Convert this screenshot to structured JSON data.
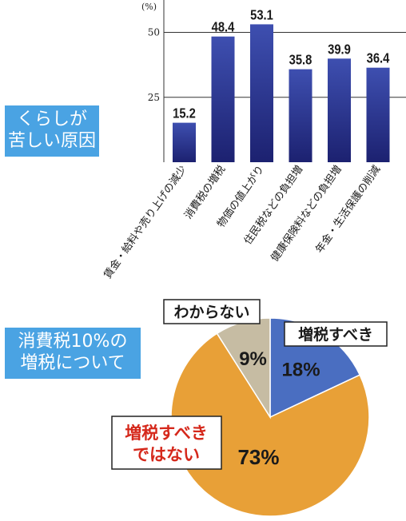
{
  "colors": {
    "bar_top": "#3e4fb0",
    "bar_bottom": "#1c2170",
    "panel_blue": "#4aa3e3",
    "pie_blue": "#4a6ec1",
    "pie_orange": "#e8a037",
    "pie_grey": "#c6bca3",
    "label_red": "#d5281b"
  },
  "top_section": {
    "label_line1": "くらしが",
    "label_line2": "苦しい原因"
  },
  "bottom_section": {
    "label_line1": "消費税10%の",
    "label_line2": "増税について"
  },
  "chart_data": [
    {
      "type": "bar",
      "ylabel_unit": "(%)",
      "yticks": [
        25,
        50
      ],
      "ylim": [
        0,
        60
      ],
      "categories": [
        "賃金・給料や売り上げの減少",
        "消費税の増税",
        "物価の値上がり",
        "住民税などの負担増",
        "健康保険料などの負担増",
        "年金・生活保護の削減"
      ],
      "values": [
        15.2,
        48.4,
        53.1,
        35.8,
        39.9,
        36.4
      ],
      "value_labels": [
        "15.2",
        "48.4",
        "53.1",
        "35.8",
        "39.9",
        "36.4"
      ],
      "grid": true
    },
    {
      "type": "pie",
      "slices": [
        {
          "label": "増税すべき",
          "value": 18,
          "value_label": "18%"
        },
        {
          "label": "増税すべきではない",
          "value": 73,
          "value_label": "73%"
        },
        {
          "label": "わからない",
          "value": 9,
          "value_label": "9%"
        }
      ],
      "callout_labels": {
        "should": "増税すべき",
        "should_not_line1": "増税すべき",
        "should_not_line2": "ではない",
        "unknown": "わからない"
      }
    }
  ]
}
